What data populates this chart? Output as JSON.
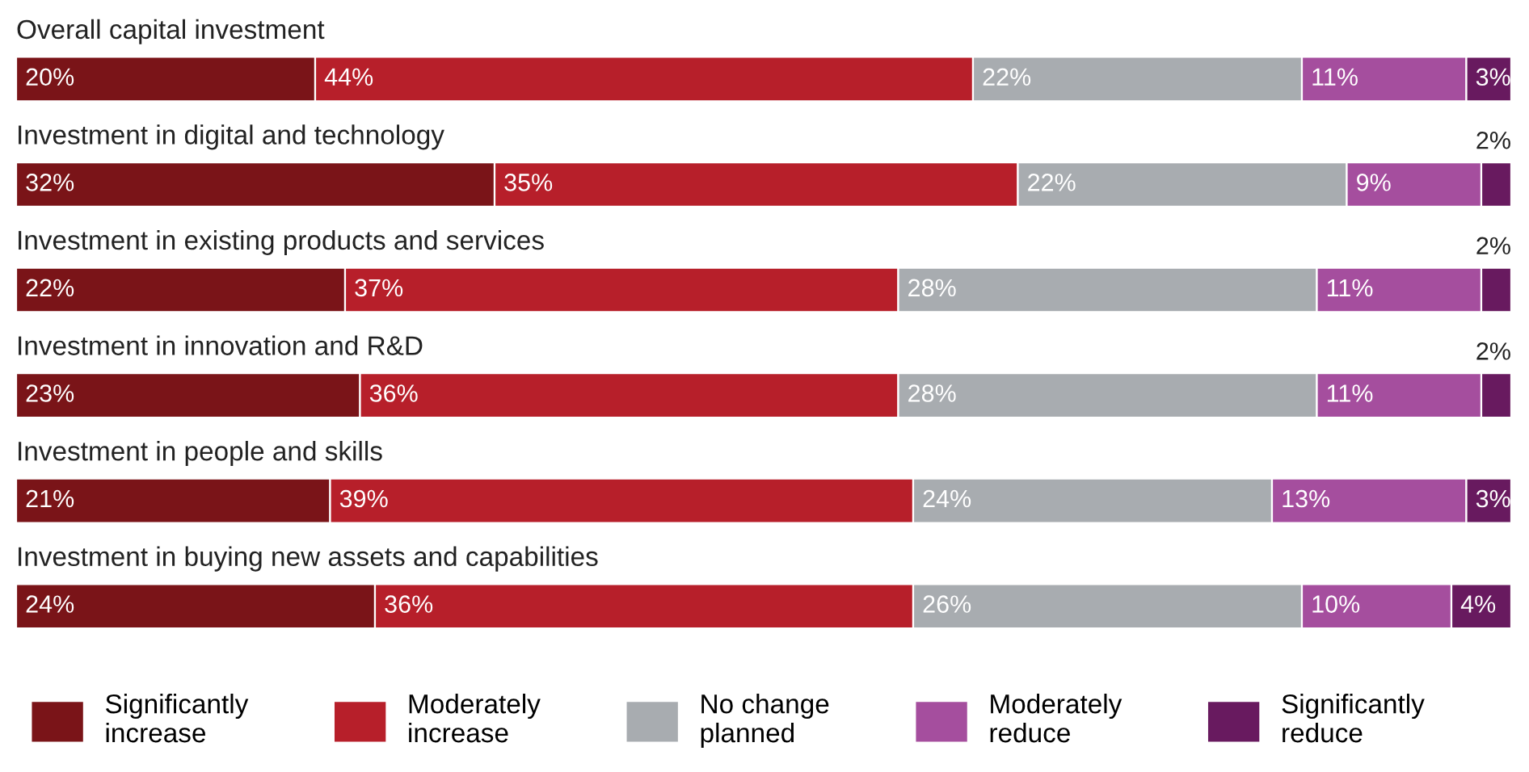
{
  "chart_data": {
    "type": "bar",
    "orientation": "horizontal",
    "stacked": true,
    "legend": "bottom",
    "categories": [
      "Overall capital investment",
      "Investment in digital and technology",
      "Investment in existing products and services",
      "Investment in innovation and R&D",
      "Investment in people and skills",
      "Investment in buying new assets and capabilities"
    ],
    "series": [
      {
        "name": "Significantly\nincrease",
        "color": "#7a1418",
        "values": [
          20,
          32,
          22,
          23,
          21,
          24
        ],
        "value_labels": [
          "20%",
          "32%",
          "22%",
          "23%",
          "21%",
          "24%"
        ]
      },
      {
        "name": "Moderately\nincrease",
        "color": "#b71f2a",
        "values": [
          44,
          35,
          37,
          36,
          39,
          36
        ],
        "value_labels": [
          "44%",
          "35%",
          "37%",
          "36%",
          "39%",
          "36%"
        ]
      },
      {
        "name": "No change\nplanned",
        "color": "#a8acb0",
        "values": [
          22,
          22,
          28,
          28,
          24,
          26
        ],
        "value_labels": [
          "22%",
          "22%",
          "28%",
          "28%",
          "24%",
          "26%"
        ]
      },
      {
        "name": "Moderately\nreduce",
        "color": "#a54e9e",
        "values": [
          11,
          9,
          11,
          11,
          13,
          10
        ],
        "value_labels": [
          "11%",
          "9%",
          "11%",
          "11%",
          "13%",
          "10%"
        ]
      },
      {
        "name": "Significantly\nreduce",
        "color": "#681a5f",
        "values": [
          3,
          2,
          2,
          2,
          3,
          4
        ],
        "value_labels": [
          "3%",
          "2%",
          "2%",
          "2%",
          "3%",
          "4%"
        ]
      }
    ]
  }
}
